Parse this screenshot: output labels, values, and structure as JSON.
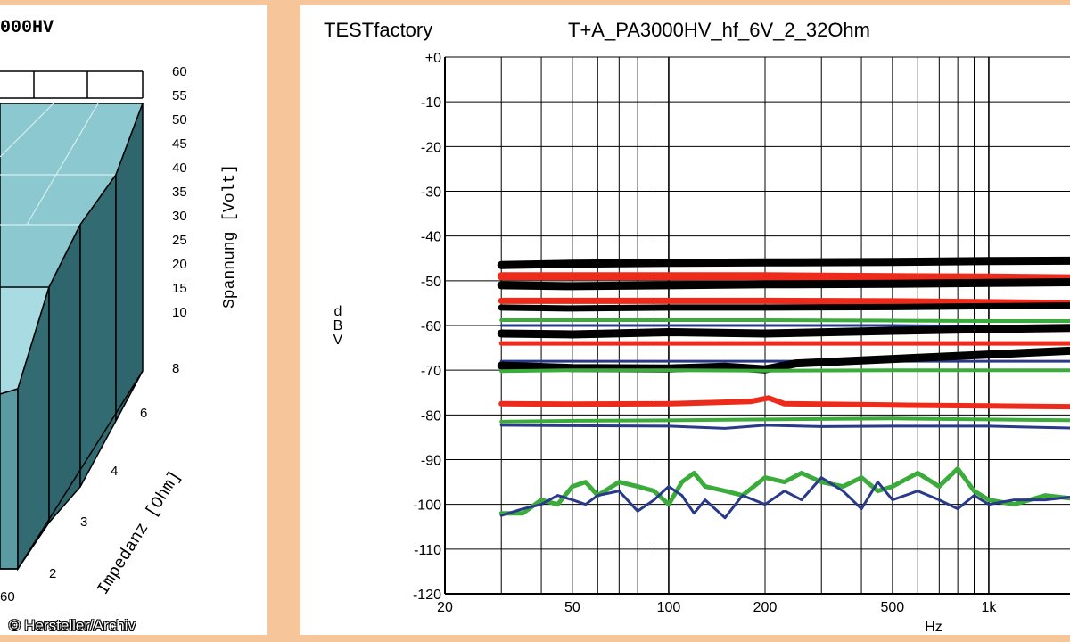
{
  "left_chart": {
    "title": "000HV",
    "voltage_axis_label": "Spannung [Volt]",
    "voltage_ticks": [
      "60",
      "55",
      "50",
      "45",
      "40",
      "35",
      "30",
      "25",
      "20",
      "15",
      "10"
    ],
    "impedance_axis_label": "Impedanz [Ohm]",
    "impedance_ticks": [
      "8",
      "6",
      "4",
      "3",
      "2"
    ],
    "bottom_tick": "60",
    "colors": {
      "top": "#8cc8d0",
      "front": "#5a9aa2",
      "side": "#336b72",
      "edge": "#000000"
    }
  },
  "right_chart": {
    "title_left": "TESTfactory",
    "title_right": "T+A_PA3000HV_hf_6V_2_32Ohm",
    "ylabel_chars": [
      "d",
      "B",
      "V"
    ],
    "xlabel": "Hz",
    "y_tick_labels": [
      "+0",
      "-10",
      "-20",
      "-30",
      "-40",
      "-50",
      "-60",
      "-70",
      "-80",
      "-90",
      "-100",
      "-110",
      "-120"
    ],
    "x_tick_labels": [
      "20",
      "50",
      "100",
      "200",
      "500",
      "1k"
    ]
  },
  "chart_data": {
    "type": "line",
    "title": "T+A_PA3000HV_hf_6V_2_32Ohm",
    "xlabel": "Hz",
    "ylabel": "dBV",
    "x_scale": "log",
    "xlim": [
      20,
      2000
    ],
    "ylim": [
      -120,
      0
    ],
    "grid": true,
    "series": [
      {
        "color": "#000000",
        "width": 9,
        "x": [
          30,
          50,
          100,
          200,
          500,
          1000,
          2000
        ],
        "y": [
          -46.5,
          -46.2,
          -46,
          -45.9,
          -45.8,
          -45.6,
          -45.5
        ]
      },
      {
        "color": "#ee2a1a",
        "width": 9,
        "x": [
          30,
          50,
          100,
          200,
          500,
          1000,
          2000
        ],
        "y": [
          -49,
          -49,
          -49,
          -49,
          -49.2,
          -49.3,
          -49.5
        ]
      },
      {
        "color": "#000000",
        "width": 9,
        "x": [
          30,
          50,
          100,
          200,
          500,
          1000,
          2000
        ],
        "y": [
          -51,
          -51.2,
          -51,
          -50.8,
          -50.7,
          -50.5,
          -50.3
        ]
      },
      {
        "color": "#ee2a1a",
        "width": 7,
        "x": [
          30,
          50,
          100,
          200,
          500,
          1000,
          2000
        ],
        "y": [
          -54.5,
          -54.5,
          -54.5,
          -54.5,
          -54.6,
          -54.8,
          -55
        ]
      },
      {
        "color": "#000000",
        "width": 7,
        "x": [
          30,
          50,
          100,
          200,
          500,
          1000,
          2000
        ],
        "y": [
          -56,
          -56.2,
          -56,
          -56,
          -55.9,
          -55.7,
          -55.5
        ]
      },
      {
        "color": "#3bab3b",
        "width": 4,
        "x": [
          30,
          50,
          100,
          200,
          500,
          1000,
          2000
        ],
        "y": [
          -58.8,
          -58.8,
          -58.8,
          -58.8,
          -58.9,
          -59,
          -59
        ]
      },
      {
        "color": "#2a3a8a",
        "width": 3,
        "x": [
          30,
          50,
          100,
          200,
          500,
          1000,
          2000
        ],
        "y": [
          -60,
          -60,
          -60,
          -60,
          -60,
          -60.2,
          -60.4
        ]
      },
      {
        "color": "#000000",
        "width": 9,
        "x": [
          30,
          50,
          100,
          200,
          500,
          1000,
          2000
        ],
        "y": [
          -61.8,
          -62,
          -61.5,
          -61.8,
          -61.2,
          -60.8,
          -60.5
        ]
      },
      {
        "color": "#ee2a1a",
        "width": 5,
        "x": [
          30,
          50,
          100,
          200,
          500,
          1000,
          2000
        ],
        "y": [
          -64,
          -64,
          -64,
          -64,
          -64,
          -64,
          -64
        ]
      },
      {
        "color": "#2a3a8a",
        "width": 3,
        "x": [
          30,
          50,
          100,
          200,
          500,
          1000,
          2000
        ],
        "y": [
          -68,
          -68,
          -68,
          -68,
          -68,
          -68,
          -68
        ]
      },
      {
        "color": "#000000",
        "width": 9,
        "x": [
          30,
          50,
          100,
          150,
          200,
          250,
          500,
          1000,
          2000
        ],
        "y": [
          -69,
          -69.5,
          -69.6,
          -69.2,
          -69.8,
          -68.5,
          -67.5,
          -66.5,
          -65.5
        ]
      },
      {
        "color": "#3bab3b",
        "width": 4,
        "x": [
          30,
          50,
          100,
          200,
          500,
          1000,
          2000
        ],
        "y": [
          -70.2,
          -70,
          -70,
          -70.1,
          -70,
          -70,
          -70
        ]
      },
      {
        "color": "#ee2a1a",
        "width": 6,
        "x": [
          30,
          50,
          100,
          180,
          205,
          230,
          500,
          1000,
          2000
        ],
        "y": [
          -77.5,
          -77.6,
          -77.5,
          -77,
          -76.2,
          -77.5,
          -77.8,
          -78,
          -78.2
        ]
      },
      {
        "color": "#3bab3b",
        "width": 4,
        "x": [
          30,
          50,
          100,
          200,
          500,
          1000,
          2000
        ],
        "y": [
          -81.5,
          -81.3,
          -81.2,
          -81,
          -80.8,
          -81,
          -81.2
        ]
      },
      {
        "color": "#2a3a8a",
        "width": 3,
        "x": [
          30,
          50,
          100,
          150,
          200,
          300,
          500,
          1000,
          2000
        ],
        "y": [
          -82.3,
          -82.4,
          -82.5,
          -83,
          -82.3,
          -82.6,
          -82.5,
          -82.5,
          -83
        ]
      },
      {
        "color": "#3bab3b",
        "width": 5,
        "x": [
          30,
          35,
          40,
          45,
          50,
          55,
          60,
          70,
          80,
          90,
          100,
          110,
          120,
          130,
          150,
          170,
          200,
          230,
          260,
          300,
          350,
          400,
          450,
          500,
          600,
          700,
          800,
          900,
          1000,
          1200,
          1500,
          2000
        ],
        "y": [
          -102,
          -102,
          -99,
          -100,
          -96,
          -95,
          -98,
          -95,
          -96,
          -97,
          -100,
          -95,
          -93,
          -96,
          -97,
          -98,
          -94,
          -95,
          -93,
          -95,
          -96,
          -94,
          -97,
          -96,
          -93,
          -96,
          -92,
          -97,
          -99,
          -100,
          -98,
          -99
        ]
      },
      {
        "color": "#2a3a8a",
        "width": 3,
        "x": [
          30,
          35,
          40,
          45,
          50,
          55,
          60,
          70,
          80,
          90,
          100,
          110,
          120,
          130,
          150,
          170,
          200,
          230,
          260,
          300,
          350,
          400,
          450,
          500,
          600,
          700,
          800,
          900,
          1000,
          1200,
          1500,
          2000
        ],
        "y": [
          -102.5,
          -101,
          -100,
          -98,
          -99,
          -100,
          -98,
          -97,
          -101.5,
          -99,
          -96,
          -98,
          -102,
          -99,
          -103,
          -98,
          -100,
          -97,
          -99,
          -94,
          -97,
          -101,
          -95,
          -99,
          -97,
          -99,
          -101,
          -98,
          -100,
          -99,
          -99,
          -98
        ]
      }
    ]
  }
}
